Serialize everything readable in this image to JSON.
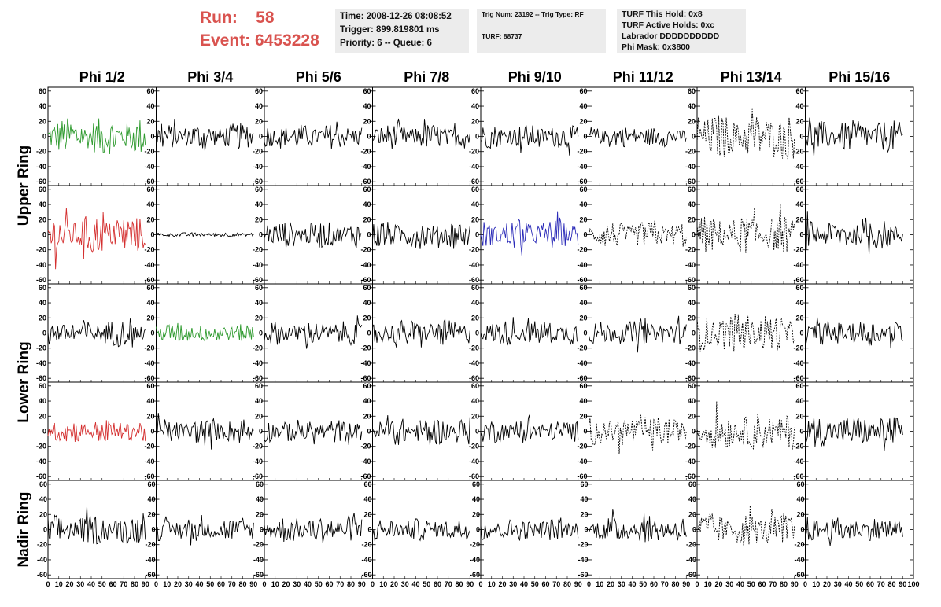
{
  "header": {
    "run_label": "Run:",
    "run_value": "58",
    "event_label": "Event:",
    "event_value": "6453228",
    "time": "Time: 2008-12-26 08:08:52",
    "trigger": "Trigger: 899.819801 ms",
    "priority": "Priority: 6 -- Queue: 6",
    "trig_num": "Trig Num: 23192 -- Trig Type: RF",
    "turf": "TURF: 88737",
    "turf_hold": "TURF This Hold: 0x8",
    "turf_active": "TURF Active Holds: 0xc",
    "labrador": "Labrador DDDDDDDDDD",
    "phi_mask": "Phi Mask: 0x3800"
  },
  "chart_data": {
    "type": "line",
    "columns": [
      "Phi 1/2",
      "Phi 3/4",
      "Phi 5/6",
      "Phi 7/8",
      "Phi 9/10",
      "Phi 11/12",
      "Phi 13/14",
      "Phi 15/16"
    ],
    "ring_labels": [
      {
        "text": "Upper Ring",
        "rows": [
          0,
          1
        ]
      },
      {
        "text": "Lower Ring",
        "rows": [
          2,
          3
        ]
      },
      {
        "text": "Nadir Ring",
        "rows": [
          4,
          4
        ]
      }
    ],
    "xlim": [
      0,
      100
    ],
    "ylim": [
      -65,
      65
    ],
    "yticks": [
      -60,
      -40,
      -20,
      0,
      20,
      40,
      60
    ],
    "xtick_labels": [
      "0",
      "10",
      "20",
      "30",
      "40",
      "50",
      "60",
      "70",
      "80",
      "90",
      "100"
    ],
    "samples_per_trace": 90,
    "colors": {
      "green": "#2e9a2e",
      "red": "#d42f2f",
      "blue": "#2a2ab8",
      "black": "#000000"
    },
    "panels": [
      [
        "green",
        "black",
        "black",
        "black",
        "black",
        "black",
        "black-dashed",
        "black"
      ],
      [
        "red",
        "black-flat",
        "black",
        "black",
        "blue",
        "black-dashed",
        "black-dashed",
        "black"
      ],
      [
        "black",
        "green",
        "black",
        "black",
        "black",
        "black",
        "black-dashed",
        "black"
      ],
      [
        "red",
        "black",
        "black",
        "black",
        "black",
        "black-dashed",
        "black-dashed",
        "black"
      ],
      [
        "black",
        "black",
        "black",
        "black",
        "black",
        "black",
        "black-dashed",
        "black"
      ]
    ],
    "amplitudes": [
      [
        25,
        18,
        17,
        17,
        16,
        14,
        30,
        22
      ],
      [
        27,
        3,
        18,
        19,
        20,
        18,
        25,
        20
      ],
      [
        18,
        14,
        16,
        18,
        17,
        16,
        26,
        17
      ],
      [
        16,
        17,
        16,
        19,
        16,
        20,
        25,
        21
      ],
      [
        20,
        16,
        18,
        15,
        15,
        18,
        22,
        17
      ]
    ]
  }
}
